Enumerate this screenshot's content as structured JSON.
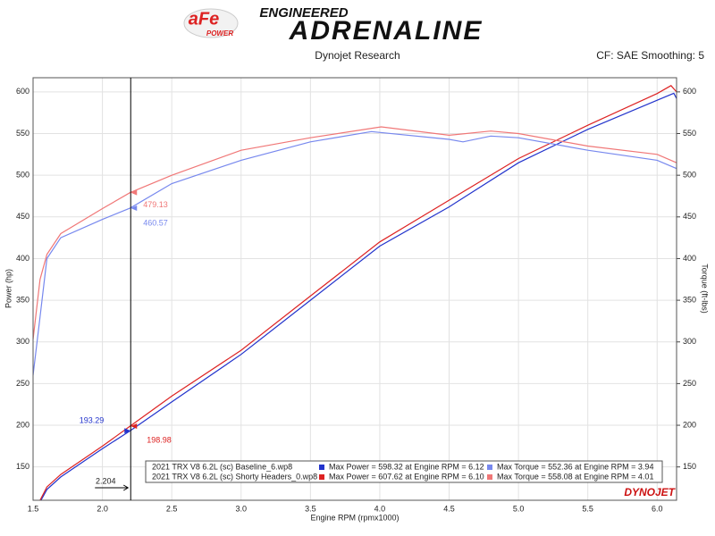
{
  "chart_data": {
    "type": "line",
    "logo": "aFe",
    "logo_sub": "POWER",
    "tagline": "ENGINEERED",
    "title": "ADRENALINE",
    "subtitle": "Dynojet Research",
    "note": "CF: SAE Smoothing: 5",
    "ylabel": "Power (hp)",
    "y2label": "Torque (ft-lbs)",
    "xlabel": "Engine RPM (rpmx1000)",
    "brand": "DYNOJET",
    "xlim": [
      1.5,
      6.14
    ],
    "xticks": [
      1.5,
      {
        "value": 2,
        "label": "2.0"
      },
      2.5,
      {
        "value": 3,
        "label": "3.0"
      },
      3.5,
      {
        "value": 4,
        "label": "4.0"
      },
      4.5,
      {
        "value": 5,
        "label": "5.0"
      },
      5.5,
      {
        "value": 6,
        "label": "6.0"
      }
    ],
    "ylim": [
      110,
      617
    ],
    "yticks": [
      150,
      200,
      250,
      300,
      350,
      400,
      450,
      500,
      550,
      600
    ],
    "y2lim": [
      110,
      617
    ],
    "y2ticks": [
      150,
      200,
      250,
      300,
      350,
      400,
      450,
      500,
      550,
      600
    ],
    "grid": true,
    "series": [
      {
        "color": "#2233cc",
        "x": [
          1.55,
          1.6,
          1.7,
          2.0,
          2.2,
          2.5,
          3.0,
          3.5,
          4.0,
          4.5,
          5.0,
          5.5,
          6.0,
          6.12,
          6.14
        ],
        "values": [
          108,
          123,
          138,
          172,
          193.29,
          228,
          285,
          350,
          415,
          462,
          515,
          555,
          590,
          598.32,
          592
        ]
      },
      {
        "color": "#dd2222",
        "x": [
          1.55,
          1.6,
          1.7,
          2.0,
          2.2,
          2.5,
          3.0,
          3.5,
          4.0,
          4.5,
          5.0,
          5.5,
          6.0,
          6.1,
          6.14
        ],
        "values": [
          110,
          126,
          141,
          175,
          198.98,
          235,
          290,
          355,
          420,
          470,
          520,
          560,
          598,
          607.62,
          600
        ]
      },
      {
        "color": "#7788ee",
        "axis": "y2",
        "x": [
          1.5,
          1.55,
          1.6,
          1.7,
          2.0,
          2.2,
          2.5,
          3.0,
          3.5,
          3.94,
          4.5,
          4.6,
          4.8,
          5.0,
          5.5,
          6.0,
          6.14
        ],
        "values": [
          260,
          330,
          400,
          425,
          447,
          460.57,
          490,
          518,
          540,
          552.36,
          543,
          540,
          547,
          545,
          530,
          518,
          508
        ]
      },
      {
        "color": "#f07777",
        "axis": "y2",
        "x": [
          1.5,
          1.55,
          1.6,
          1.7,
          2.0,
          2.2,
          2.5,
          3.0,
          3.5,
          4.01,
          4.5,
          4.8,
          5.0,
          5.5,
          6.0,
          6.14
        ],
        "values": [
          303,
          375,
          405,
          430,
          460,
          479.13,
          500,
          530,
          545,
          558.08,
          548,
          553,
          550,
          535,
          525,
          515
        ]
      }
    ],
    "cursor": {
      "x": 2.204,
      "values": [
        479.13,
        460.57,
        193.29,
        198.98
      ]
    },
    "legend": [
      {
        "run": "2021 TRX V8 6.2L (sc) Baseline_6.wp8",
        "power": "Max Power = 598.32 at Engine RPM = 6.12",
        "torque": "Max Torque = 552.36 at Engine RPM = 3.94"
      },
      {
        "run": "2021 TRX V8 6.2L (sc) Shorty Headers_0.wp8",
        "power": "Max Power = 607.62 at Engine RPM = 6.10",
        "torque": "Max Torque = 558.08 at Engine RPM = 4.01"
      }
    ]
  }
}
